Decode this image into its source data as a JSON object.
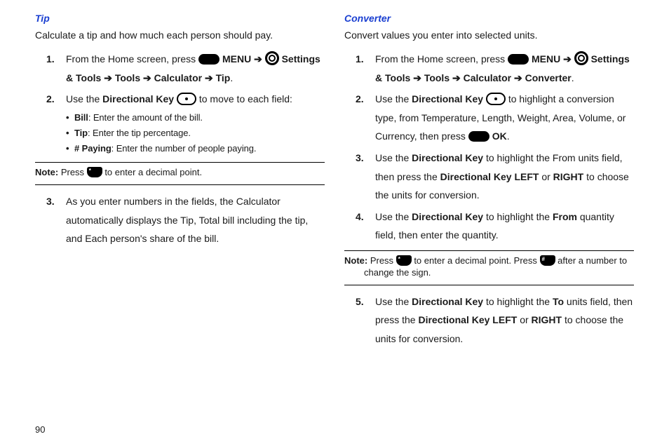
{
  "page_number": "90",
  "colors": {
    "heading": "#1a3fd1",
    "text": "#1a1a1a",
    "rule": "#000000",
    "bg": "#ffffff"
  },
  "left": {
    "title": "Tip",
    "intro": "Calculate a tip and how much each person should pay.",
    "step1_a": "From the Home screen, press ",
    "step1_menu": "MENU",
    "step1_arrow": " ➔ ",
    "step1_settings": "Settings & Tools",
    "step1_tools": "Tools",
    "step1_calc": "Calculator",
    "step1_tip": "Tip",
    "step2_a": "Use the ",
    "step2_dk": "Directional Key",
    "step2_b": " to move to each field:",
    "sub1_b": "Bill",
    "sub1_t": ": Enter the amount of the bill.",
    "sub2_b": "Tip",
    "sub2_t": ": Enter the tip percentage.",
    "sub3_b": "# Paying",
    "sub3_t": ": Enter the number of people paying.",
    "note_b": "Note:",
    "note_a": " Press ",
    "note_c": " to enter a decimal point.",
    "step3": "As you enter numbers in the fields, the Calculator automatically displays the Tip, Total bill including the tip, and Each person's share of the bill."
  },
  "right": {
    "title": "Converter",
    "intro": "Convert values you enter into selected units.",
    "step1_a": "From the Home screen, press ",
    "step1_menu": "MENU",
    "step1_arrow": " ➔ ",
    "step1_settings": "Settings & Tools",
    "step1_tools": "Tools",
    "step1_calc": "Calculator",
    "step1_conv": "Converter",
    "step2_a": "Use the ",
    "step2_dk": "Directional Key",
    "step2_b": " to highlight a conversion type, from Temperature, Length, Weight, Area, Volume, or Currency, then press ",
    "step2_ok": "OK",
    "step3_a": "Use the ",
    "step3_b": " to highlight the From units field, then press the ",
    "step3_c": "Directional Key LEFT",
    "step3_or": " or ",
    "step3_d": "RIGHT",
    "step3_e": " to choose the units for conversion.",
    "step4_a": "Use the ",
    "step4_b": " to highlight the ",
    "step4_from": "From",
    "step4_c": " quantity field, then enter the quantity.",
    "note_b": "Note:",
    "note_a": " Press ",
    "note_c": " to enter a decimal point. Press ",
    "note_d": " after a number  to ",
    "note_e": "change the sign.",
    "step5_a": "Use the ",
    "step5_b": " to highlight the ",
    "step5_to": "To",
    "step5_c": " units field, then press the ",
    "step5_d": "Directional Key LEFT",
    "step5_or": " or ",
    "step5_e": "RIGHT",
    "step5_f": " to choose the units for conversion."
  },
  "key_labels": {
    "star": "*",
    "pound": "#"
  }
}
